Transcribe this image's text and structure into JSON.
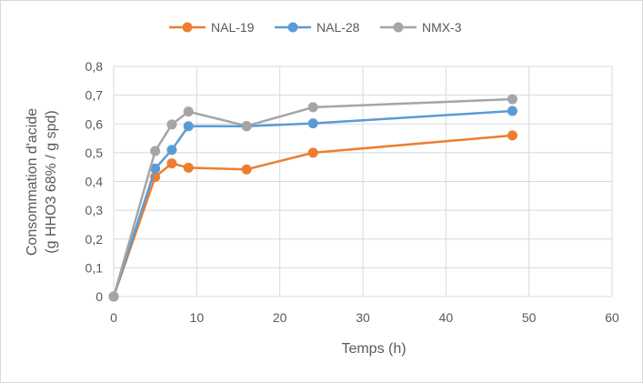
{
  "chart_data": {
    "type": "line",
    "title": "",
    "xlabel": "Temps (h)",
    "ylabel_lines": [
      "Consommation d'acide",
      "(g HHO3 68% / g spd)"
    ],
    "xlim": [
      0,
      60
    ],
    "ylim": [
      0,
      0.8
    ],
    "xticks": [
      "0",
      "10",
      "20",
      "30",
      "40",
      "50",
      "60"
    ],
    "yticks": [
      "0",
      "0,1",
      "0,2",
      "0,3",
      "0,4",
      "0,5",
      "0,6",
      "0,7",
      "0,8"
    ],
    "grid": true,
    "legend_position": "top",
    "series": [
      {
        "name": "NAL-19",
        "color": "#ED7D31",
        "x": [
          0,
          5,
          7,
          9,
          16,
          24,
          48
        ],
        "y": [
          0,
          0.416,
          0.463,
          0.448,
          0.442,
          0.5,
          0.56
        ]
      },
      {
        "name": "NAL-28",
        "color": "#5B9BD5",
        "x": [
          0,
          5,
          7,
          9,
          16,
          24,
          48
        ],
        "y": [
          0,
          0.445,
          0.51,
          0.592,
          0.592,
          0.602,
          0.645
        ]
      },
      {
        "name": "NMX-3",
        "color": "#A5A5A5",
        "x": [
          0,
          5,
          7,
          9,
          16,
          24,
          48
        ],
        "y": [
          0,
          0.506,
          0.598,
          0.643,
          0.593,
          0.658,
          0.686
        ]
      }
    ]
  }
}
